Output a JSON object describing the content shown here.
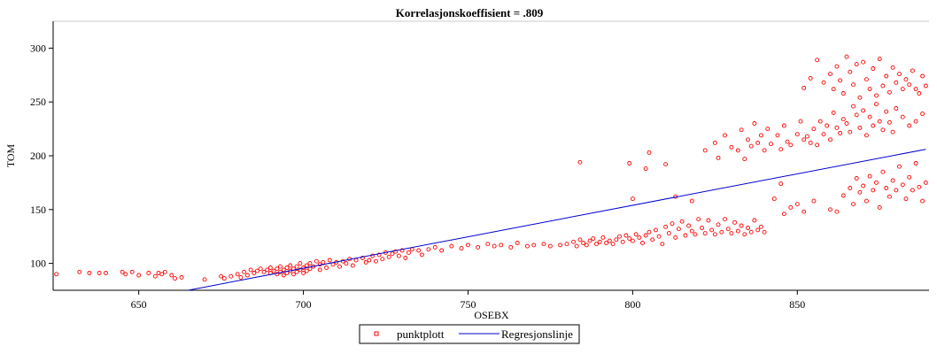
{
  "chart_data": {
    "type": "scatter",
    "title": "Korrelasjonskoeffisient =  .809",
    "xlabel": "OSEBX",
    "ylabel": "TOM",
    "xlim": [
      624,
      890
    ],
    "ylim": [
      75,
      325
    ],
    "x_ticks": [
      650,
      700,
      750,
      800,
      850
    ],
    "y_ticks": [
      100,
      150,
      200,
      250,
      300
    ],
    "grid": false,
    "legend_position": "bottom-center",
    "series": [
      {
        "name": "punktplott",
        "kind": "scatter",
        "color": "#ff0000",
        "points": [
          [
            625,
            90
          ],
          [
            632,
            92
          ],
          [
            635,
            91
          ],
          [
            638,
            91
          ],
          [
            640,
            91
          ],
          [
            645,
            92
          ],
          [
            646,
            90
          ],
          [
            648,
            92
          ],
          [
            650,
            89
          ],
          [
            653,
            91
          ],
          [
            655,
            88
          ],
          [
            656,
            91
          ],
          [
            657,
            90
          ],
          [
            658,
            92
          ],
          [
            660,
            89
          ],
          [
            661,
            86
          ],
          [
            663,
            87
          ],
          [
            670,
            85
          ],
          [
            675,
            88
          ],
          [
            676,
            86
          ],
          [
            678,
            88
          ],
          [
            680,
            90
          ],
          [
            681,
            87
          ],
          [
            682,
            92
          ],
          [
            683,
            89
          ],
          [
            684,
            94
          ],
          [
            685,
            91
          ],
          [
            686,
            93
          ],
          [
            687,
            95
          ],
          [
            688,
            92
          ],
          [
            689,
            94
          ],
          [
            690,
            96
          ],
          [
            690,
            91
          ],
          [
            691,
            93
          ],
          [
            692,
            95
          ],
          [
            692,
            90
          ],
          [
            693,
            92
          ],
          [
            693,
            97
          ],
          [
            694,
            94
          ],
          [
            694,
            89
          ],
          [
            695,
            91
          ],
          [
            695,
            96
          ],
          [
            696,
            93
          ],
          [
            696,
            98
          ],
          [
            697,
            95
          ],
          [
            697,
            90
          ],
          [
            698,
            92
          ],
          [
            698,
            97
          ],
          [
            699,
            94
          ],
          [
            699,
            100
          ],
          [
            700,
            96
          ],
          [
            700,
            91
          ],
          [
            701,
            98
          ],
          [
            701,
            93
          ],
          [
            702,
            100
          ],
          [
            702,
            95
          ],
          [
            703,
            97
          ],
          [
            704,
            102
          ],
          [
            705,
            99
          ],
          [
            705,
            94
          ],
          [
            706,
            101
          ],
          [
            707,
            96
          ],
          [
            708,
            103
          ],
          [
            709,
            99
          ],
          [
            710,
            101
          ],
          [
            711,
            97
          ],
          [
            712,
            102
          ],
          [
            713,
            100
          ],
          [
            714,
            104
          ],
          [
            715,
            98
          ],
          [
            716,
            103
          ],
          [
            718,
            105
          ],
          [
            719,
            101
          ],
          [
            720,
            103
          ],
          [
            721,
            107
          ],
          [
            722,
            102
          ],
          [
            723,
            108
          ],
          [
            724,
            104
          ],
          [
            725,
            110
          ],
          [
            726,
            106
          ],
          [
            727,
            109
          ],
          [
            728,
            111
          ],
          [
            729,
            107
          ],
          [
            730,
            112
          ],
          [
            731,
            105
          ],
          [
            732,
            110
          ],
          [
            733,
            113
          ],
          [
            735,
            112
          ],
          [
            736,
            108
          ],
          [
            738,
            113
          ],
          [
            740,
            115
          ],
          [
            742,
            112
          ],
          [
            745,
            116
          ],
          [
            748,
            114
          ],
          [
            750,
            117
          ],
          [
            753,
            115
          ],
          [
            756,
            118
          ],
          [
            758,
            116
          ],
          [
            760,
            117
          ],
          [
            763,
            115
          ],
          [
            765,
            119
          ],
          [
            768,
            116
          ],
          [
            770,
            117
          ],
          [
            773,
            118
          ],
          [
            775,
            116
          ],
          [
            778,
            117
          ],
          [
            780,
            118
          ],
          [
            782,
            120
          ],
          [
            783,
            116
          ],
          [
            784,
            122
          ],
          [
            785,
            119
          ],
          [
            786,
            117
          ],
          [
            787,
            121
          ],
          [
            788,
            123
          ],
          [
            789,
            118
          ],
          [
            790,
            120
          ],
          [
            791,
            124
          ],
          [
            792,
            119
          ],
          [
            793,
            121
          ],
          [
            794,
            118
          ],
          [
            795,
            122
          ],
          [
            796,
            125
          ],
          [
            797,
            120
          ],
          [
            798,
            126
          ],
          [
            799,
            123
          ],
          [
            800,
            121
          ],
          [
            801,
            127
          ],
          [
            802,
            124
          ],
          [
            803,
            119
          ],
          [
            804,
            126
          ],
          [
            805,
            129
          ],
          [
            806,
            122
          ],
          [
            807,
            131
          ],
          [
            808,
            125
          ],
          [
            809,
            118
          ],
          [
            810,
            134
          ],
          [
            811,
            128
          ],
          [
            812,
            137
          ],
          [
            813,
            124
          ],
          [
            814,
            132
          ],
          [
            815,
            139
          ],
          [
            816,
            126
          ],
          [
            817,
            135
          ],
          [
            818,
            130
          ],
          [
            819,
            127
          ],
          [
            820,
            141
          ],
          [
            821,
            133
          ],
          [
            822,
            128
          ],
          [
            823,
            140
          ],
          [
            824,
            131
          ],
          [
            825,
            127
          ],
          [
            826,
            136
          ],
          [
            827,
            129
          ],
          [
            828,
            141
          ],
          [
            829,
            132
          ],
          [
            830,
            128
          ],
          [
            831,
            138
          ],
          [
            832,
            130
          ],
          [
            833,
            135
          ],
          [
            834,
            127
          ],
          [
            835,
            133
          ],
          [
            836,
            129
          ],
          [
            837,
            140
          ],
          [
            838,
            131
          ],
          [
            839,
            134
          ],
          [
            840,
            129
          ],
          [
            784,
            194
          ],
          [
            799,
            193
          ],
          [
            800,
            160
          ],
          [
            804,
            188
          ],
          [
            805,
            203
          ],
          [
            810,
            192
          ],
          [
            813,
            162
          ],
          [
            818,
            158
          ],
          [
            822,
            205
          ],
          [
            825,
            212
          ],
          [
            826,
            198
          ],
          [
            828,
            219
          ],
          [
            830,
            208
          ],
          [
            832,
            205
          ],
          [
            833,
            224
          ],
          [
            834,
            197
          ],
          [
            835,
            215
          ],
          [
            836,
            209
          ],
          [
            837,
            230
          ],
          [
            838,
            212
          ],
          [
            839,
            219
          ],
          [
            840,
            205
          ],
          [
            841,
            225
          ],
          [
            842,
            211
          ],
          [
            844,
            219
          ],
          [
            845,
            206
          ],
          [
            846,
            228
          ],
          [
            847,
            213
          ],
          [
            848,
            210
          ],
          [
            850,
            220
          ],
          [
            851,
            232
          ],
          [
            852,
            215
          ],
          [
            853,
            218
          ],
          [
            854,
            212
          ],
          [
            855,
            225
          ],
          [
            856,
            210
          ],
          [
            857,
            232
          ],
          [
            858,
            220
          ],
          [
            859,
            228
          ],
          [
            860,
            215
          ],
          [
            861,
            240
          ],
          [
            862,
            226
          ],
          [
            863,
            221
          ],
          [
            864,
            234
          ],
          [
            865,
            230
          ],
          [
            866,
            222
          ],
          [
            867,
            246
          ],
          [
            868,
            238
          ],
          [
            869,
            226
          ],
          [
            870,
            242
          ],
          [
            871,
            219
          ],
          [
            872,
            236
          ],
          [
            873,
            228
          ],
          [
            874,
            248
          ],
          [
            875,
            232
          ],
          [
            876,
            224
          ],
          [
            877,
            241
          ],
          [
            878,
            231
          ],
          [
            879,
            222
          ],
          [
            880,
            244
          ],
          [
            882,
            236
          ],
          [
            884,
            228
          ],
          [
            886,
            232
          ],
          [
            888,
            239
          ],
          [
            852,
            263
          ],
          [
            854,
            272
          ],
          [
            856,
            289
          ],
          [
            858,
            268
          ],
          [
            860,
            276
          ],
          [
            861,
            262
          ],
          [
            862,
            283
          ],
          [
            863,
            270
          ],
          [
            864,
            258
          ],
          [
            865,
            292
          ],
          [
            866,
            278
          ],
          [
            867,
            266
          ],
          [
            868,
            285
          ],
          [
            869,
            254
          ],
          [
            870,
            287
          ],
          [
            871,
            271
          ],
          [
            872,
            262
          ],
          [
            873,
            281
          ],
          [
            874,
            256
          ],
          [
            875,
            290
          ],
          [
            876,
            265
          ],
          [
            877,
            274
          ],
          [
            878,
            259
          ],
          [
            879,
            282
          ],
          [
            880,
            268
          ],
          [
            881,
            276
          ],
          [
            882,
            262
          ],
          [
            883,
            271
          ],
          [
            884,
            266
          ],
          [
            885,
            279
          ],
          [
            886,
            262
          ],
          [
            887,
            258
          ],
          [
            888,
            274
          ],
          [
            889,
            265
          ],
          [
            855,
            158
          ],
          [
            860,
            150
          ],
          [
            862,
            148
          ],
          [
            864,
            163
          ],
          [
            866,
            170
          ],
          [
            867,
            155
          ],
          [
            868,
            179
          ],
          [
            869,
            166
          ],
          [
            870,
            172
          ],
          [
            871,
            158
          ],
          [
            872,
            181
          ],
          [
            873,
            168
          ],
          [
            874,
            175
          ],
          [
            875,
            152
          ],
          [
            876,
            185
          ],
          [
            877,
            170
          ],
          [
            878,
            162
          ],
          [
            879,
            177
          ],
          [
            880,
            168
          ],
          [
            881,
            190
          ],
          [
            882,
            173
          ],
          [
            883,
            160
          ],
          [
            884,
            180
          ],
          [
            885,
            168
          ],
          [
            886,
            193
          ],
          [
            887,
            171
          ],
          [
            888,
            158
          ],
          [
            889,
            175
          ],
          [
            843,
            160
          ],
          [
            846,
            146
          ],
          [
            848,
            152
          ],
          [
            850,
            155
          ],
          [
            845,
            174
          ],
          [
            852,
            148
          ]
        ]
      },
      {
        "name": "Regresjonslinje",
        "kind": "line",
        "color": "#0000cc",
        "points": [
          [
            665,
            75
          ],
          [
            889,
            206
          ]
        ]
      }
    ]
  }
}
